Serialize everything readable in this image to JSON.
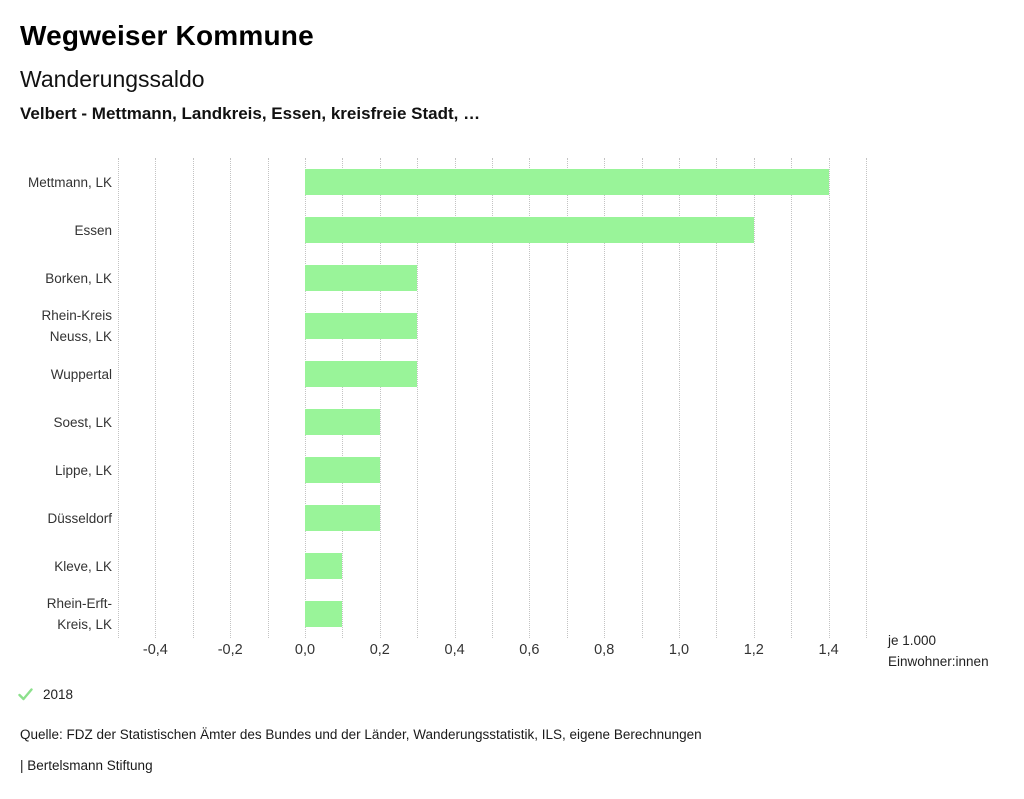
{
  "header": {
    "title": "Wegweiser Kommune",
    "subtitle": "Wanderungssaldo",
    "selection": "Velbert - Mettmann, Landkreis, Essen, kreisfreie Stadt, …"
  },
  "chart_data": {
    "type": "bar",
    "orientation": "horizontal",
    "title": "Wanderungssaldo",
    "categories": [
      "Mettmann, LK",
      "Essen",
      "Borken, LK",
      "Rhein-Kreis Neuss, LK",
      "Wuppertal",
      "Soest, LK",
      "Lippe, LK",
      "Düsseldorf",
      "Kleve, LK",
      "Rhein-Erft-Kreis, LK"
    ],
    "category_label_lines": [
      [
        "Mettmann, LK"
      ],
      [
        "Essen"
      ],
      [
        "Borken, LK"
      ],
      [
        "Rhein-Kreis",
        "Neuss, LK"
      ],
      [
        "Wuppertal"
      ],
      [
        "Soest, LK"
      ],
      [
        "Lippe, LK"
      ],
      [
        "Düsseldorf"
      ],
      [
        "Kleve, LK"
      ],
      [
        "Rhein-Erft-",
        "Kreis, LK"
      ]
    ],
    "values": [
      1.4,
      1.2,
      0.3,
      0.3,
      0.3,
      0.2,
      0.2,
      0.2,
      0.1,
      0.1
    ],
    "xlabel": "je 1.000 Einwohner:innen",
    "unit_label_lines": [
      "je 1.000",
      "Einwohner:innen"
    ],
    "xlim": [
      -0.5,
      1.5
    ],
    "grid": true,
    "grid_step": 0.1,
    "ticks": [
      {
        "value": -0.4,
        "label": "-0,4"
      },
      {
        "value": -0.2,
        "label": "-0,2"
      },
      {
        "value": 0.0,
        "label": "0,0"
      },
      {
        "value": 0.2,
        "label": "0,2"
      },
      {
        "value": 0.4,
        "label": "0,4"
      },
      {
        "value": 0.6,
        "label": "0,6"
      },
      {
        "value": 0.8,
        "label": "0,8"
      },
      {
        "value": 1.0,
        "label": "1,0"
      },
      {
        "value": 1.2,
        "label": "1,2"
      },
      {
        "value": 1.4,
        "label": "1,4"
      }
    ],
    "bar_color": "#99f499",
    "grid_color": "#c3c3c3",
    "legend_position": "bottom-left"
  },
  "legend": {
    "year": "2018",
    "check_color": "#8ce08c"
  },
  "footer": {
    "source": "Quelle: FDZ der Statistischen Ämter des Bundes und der Länder, Wanderungsstatistik, ILS, eigene Berechnungen",
    "branding": "| Bertelsmann Stiftung"
  }
}
